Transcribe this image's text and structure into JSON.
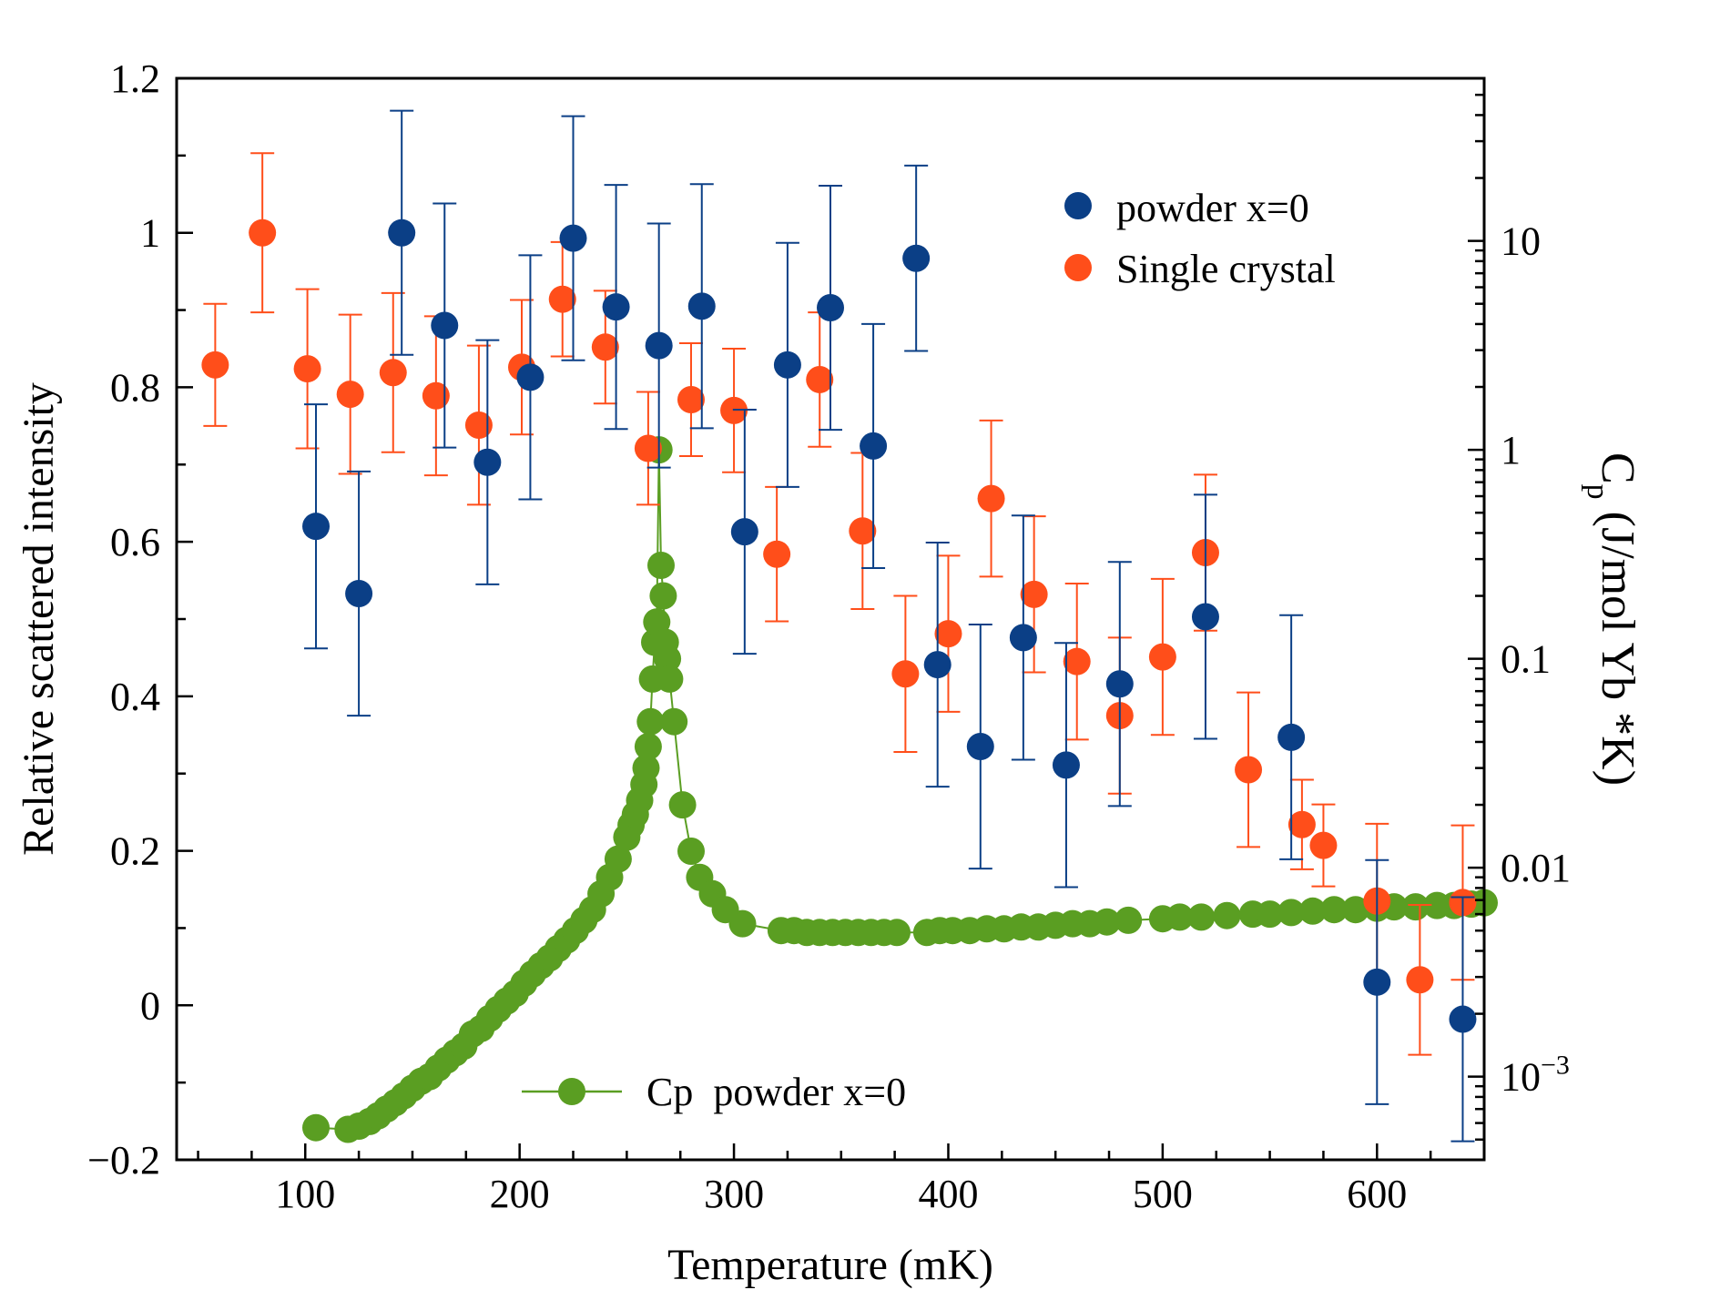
{
  "chart_data": {
    "type": "scatter",
    "xlabel": "Temperature (mK)",
    "ylabel_left": "Relative scattered intensity",
    "ylabel_right_main": "C",
    "ylabel_right_sub": "p",
    "ylabel_right_rest": " (J/mol Yb *K)",
    "xlim": [
      40,
      650
    ],
    "ylim_left": [
      -0.2,
      1.2
    ],
    "ylim_right_log": [
      0.0004,
      60
    ],
    "x_ticks": [
      100,
      200,
      300,
      400,
      500,
      600
    ],
    "y_ticks_left": [
      -0.2,
      0,
      0.2,
      0.4,
      0.6,
      0.8,
      1,
      1.2
    ],
    "y_tick_labels_left": [
      "−0.2",
      "0",
      "0.2",
      "0.4",
      "0.6",
      "0.8",
      "1",
      "1.2"
    ],
    "y_ticks_right": [
      0.001,
      0.01,
      0.1,
      1,
      10
    ],
    "y_tick_labels_right": [
      "10−3",
      "0.01",
      "0.1",
      "1",
      "10"
    ],
    "legend_top": [
      "powder x=0",
      "Single crystal"
    ],
    "legend_bottom": "Cp  powder x=0",
    "colors": {
      "powder": "#0b3f86",
      "single": "#ff4e1a",
      "cp": "#5a9e22",
      "axis": "#000000"
    },
    "series": [
      {
        "name": "powder x=0",
        "axis": "left",
        "points": [
          {
            "x": 105,
            "y": 0.62,
            "err": 0.158
          },
          {
            "x": 125,
            "y": 0.533,
            "err": 0.158
          },
          {
            "x": 145,
            "y": 1.0,
            "err": 0.158
          },
          {
            "x": 165,
            "y": 0.88,
            "err": 0.158
          },
          {
            "x": 185,
            "y": 0.703,
            "err": 0.158
          },
          {
            "x": 205,
            "y": 0.813,
            "err": 0.158
          },
          {
            "x": 225,
            "y": 0.993,
            "err": 0.158
          },
          {
            "x": 245,
            "y": 0.904,
            "err": 0.158
          },
          {
            "x": 265,
            "y": 0.854,
            "err": 0.158
          },
          {
            "x": 285,
            "y": 0.905,
            "err": 0.158
          },
          {
            "x": 305,
            "y": 0.613,
            "err": 0.158
          },
          {
            "x": 325,
            "y": 0.829,
            "err": 0.158
          },
          {
            "x": 345,
            "y": 0.903,
            "err": 0.158
          },
          {
            "x": 365,
            "y": 0.724,
            "err": 0.158
          },
          {
            "x": 385,
            "y": 0.967,
            "err": 0.12
          },
          {
            "x": 395,
            "y": 0.441,
            "err": 0.158
          },
          {
            "x": 415,
            "y": 0.335,
            "err": 0.158
          },
          {
            "x": 435,
            "y": 0.476,
            "err": 0.158
          },
          {
            "x": 455,
            "y": 0.311,
            "err": 0.158
          },
          {
            "x": 480,
            "y": 0.416,
            "err": 0.158
          },
          {
            "x": 520,
            "y": 0.503,
            "err": 0.158
          },
          {
            "x": 560,
            "y": 0.347,
            "err": 0.158
          },
          {
            "x": 600,
            "y": 0.03,
            "err": 0.158
          },
          {
            "x": 640,
            "y": -0.018,
            "err": 0.158
          }
        ]
      },
      {
        "name": "Single crystal",
        "axis": "left",
        "points": [
          {
            "x": 58,
            "y": 0.829,
            "err": 0.079
          },
          {
            "x": 80,
            "y": 1.0,
            "err": 0.103
          },
          {
            "x": 101,
            "y": 0.824,
            "err": 0.103
          },
          {
            "x": 121,
            "y": 0.791,
            "err": 0.103
          },
          {
            "x": 141,
            "y": 0.819,
            "err": 0.103
          },
          {
            "x": 161,
            "y": 0.789,
            "err": 0.103
          },
          {
            "x": 181,
            "y": 0.751,
            "err": 0.103
          },
          {
            "x": 201,
            "y": 0.826,
            "err": 0.087
          },
          {
            "x": 220,
            "y": 0.914,
            "err": 0.074
          },
          {
            "x": 240,
            "y": 0.852,
            "err": 0.073
          },
          {
            "x": 260,
            "y": 0.721,
            "err": 0.073
          },
          {
            "x": 280,
            "y": 0.784,
            "err": 0.073
          },
          {
            "x": 300,
            "y": 0.77,
            "err": 0.08
          },
          {
            "x": 320,
            "y": 0.584,
            "err": 0.087
          },
          {
            "x": 340,
            "y": 0.81,
            "err": 0.087
          },
          {
            "x": 360,
            "y": 0.614,
            "err": 0.101
          },
          {
            "x": 380,
            "y": 0.429,
            "err": 0.101
          },
          {
            "x": 400,
            "y": 0.481,
            "err": 0.101
          },
          {
            "x": 420,
            "y": 0.656,
            "err": 0.101
          },
          {
            "x": 440,
            "y": 0.532,
            "err": 0.101
          },
          {
            "x": 460,
            "y": 0.445,
            "err": 0.101
          },
          {
            "x": 480,
            "y": 0.375,
            "err": 0.101
          },
          {
            "x": 500,
            "y": 0.451,
            "err": 0.101
          },
          {
            "x": 520,
            "y": 0.586,
            "err": 0.101
          },
          {
            "x": 540,
            "y": 0.305,
            "err": 0.1
          },
          {
            "x": 565,
            "y": 0.234,
            "err": 0.058
          },
          {
            "x": 575,
            "y": 0.207,
            "err": 0.053
          },
          {
            "x": 600,
            "y": 0.135,
            "err": 0.1
          },
          {
            "x": 620,
            "y": 0.033,
            "err": 0.097
          },
          {
            "x": 640,
            "y": 0.133,
            "err": 0.1
          }
        ]
      },
      {
        "name": "Cp  powder x=0",
        "axis": "right",
        "style": "line+markers",
        "x": [
          105,
          120,
          125,
          130,
          134,
          138,
          142,
          146,
          150,
          154,
          158,
          162,
          166,
          170,
          174,
          178,
          182,
          186,
          190,
          194,
          198,
          202,
          206,
          210,
          214,
          218,
          222,
          226,
          230,
          234,
          238,
          242,
          246,
          250,
          252,
          254,
          256,
          258,
          259,
          260,
          261,
          262,
          263,
          264,
          265,
          266,
          267,
          268,
          269,
          270,
          272,
          276,
          280,
          284,
          290,
          296,
          304,
          322,
          328,
          334,
          340,
          346,
          352,
          358,
          364,
          370,
          376,
          390,
          396,
          402,
          410,
          418,
          426,
          434,
          442,
          450,
          458,
          466,
          474,
          484,
          500,
          508,
          518,
          530,
          542,
          550,
          560,
          570,
          580,
          590,
          600,
          608,
          618,
          628,
          636,
          644,
          650
        ],
        "y": [
          0.00057,
          0.00056,
          0.00058,
          0.00061,
          0.00065,
          0.0007,
          0.00075,
          0.00081,
          0.00088,
          0.00095,
          0.001,
          0.0011,
          0.0012,
          0.0013,
          0.0014,
          0.0016,
          0.0017,
          0.0019,
          0.0021,
          0.0023,
          0.0025,
          0.0028,
          0.0031,
          0.0034,
          0.0037,
          0.0041,
          0.0045,
          0.005,
          0.0056,
          0.0063,
          0.0075,
          0.009,
          0.011,
          0.014,
          0.016,
          0.018,
          0.021,
          0.025,
          0.03,
          0.038,
          0.05,
          0.08,
          0.12,
          0.15,
          1.0,
          0.28,
          0.2,
          0.12,
          0.1,
          0.08,
          0.05,
          0.02,
          0.012,
          0.009,
          0.0075,
          0.0063,
          0.0054,
          0.005,
          0.005,
          0.0049,
          0.0049,
          0.0049,
          0.0049,
          0.0049,
          0.0049,
          0.0049,
          0.0049,
          0.0049,
          0.005,
          0.005,
          0.005,
          0.0051,
          0.0051,
          0.0052,
          0.0052,
          0.0053,
          0.0054,
          0.0054,
          0.0055,
          0.0056,
          0.0057,
          0.0058,
          0.0058,
          0.0059,
          0.006,
          0.006,
          0.0061,
          0.0062,
          0.0063,
          0.0063,
          0.0064,
          0.0065,
          0.0065,
          0.0066,
          0.0066,
          0.0067,
          0.0068
        ]
      }
    ]
  }
}
